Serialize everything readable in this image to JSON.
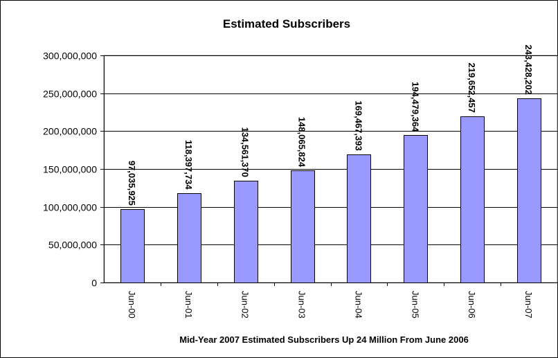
{
  "chart_data": {
    "type": "bar",
    "title": "Estimated Subscribers",
    "xlabel": "Mid-Year 2007 Estimated Subscribers Up 24 Million From June 2006",
    "ylabel": "",
    "categories": [
      "Jun-00",
      "Jun-01",
      "Jun-02",
      "Jun-03",
      "Jun-04",
      "Jun-05",
      "Jun-06",
      "Jun-07"
    ],
    "values": [
      97035925,
      118397734,
      134561370,
      148065824,
      169467393,
      194479364,
      219652457,
      243428202
    ],
    "data_labels": [
      "97,035,925",
      "118,397,734",
      "134,561,370",
      "148,065,824",
      "169,467,393",
      "194,479,364",
      "219,652,457",
      "243,428,202"
    ],
    "yticks": [
      0,
      50000000,
      100000000,
      150000000,
      200000000,
      250000000,
      300000000
    ],
    "ytick_labels": [
      "0",
      "50,000,000",
      "100,000,000",
      "150,000,000",
      "200,000,000",
      "250,000,000",
      "300,000,000"
    ],
    "ylim": [
      0,
      300000000
    ],
    "grid": true,
    "legend": "none",
    "colors": {
      "bar": "#9999ff",
      "bar_edge": "#000000"
    }
  }
}
